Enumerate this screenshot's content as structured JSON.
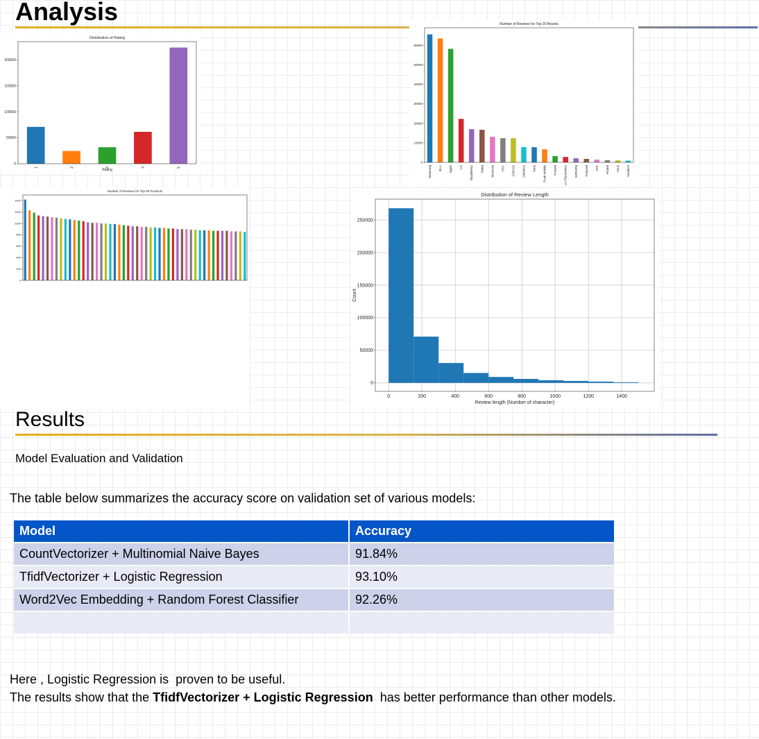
{
  "header": {
    "title": "Analysis"
  },
  "chart_data": [
    {
      "type": "bar",
      "title": "Distribution of Rating",
      "xlabel": "Rating",
      "categories": [
        "1",
        "2",
        "3",
        "4",
        "5"
      ],
      "values": [
        71000,
        24700,
        31800,
        61400,
        223600
      ],
      "colors": [
        "#1f77b4",
        "#ff7f0e",
        "#2ca02c",
        "#d62728",
        "#9467bd"
      ],
      "ylim": [
        0,
        235000
      ],
      "yticks": [
        0,
        50000,
        100000,
        150000,
        200000
      ],
      "grid": false
    },
    {
      "type": "bar",
      "title": "Number of Reviews for Top 20 Brands",
      "categories": [
        "Samsung",
        "BLU",
        "Apple",
        "LG",
        "BlackBerry",
        "Nokia",
        "Motorola",
        "HTC",
        "CNPGD",
        "OtterBox",
        "Sony",
        "Posh Mobile",
        "Huawei",
        "LG Electronics",
        "samsung",
        "Polaroid",
        "ZTE",
        "Alcatel",
        "Asus",
        "verykool"
      ],
      "values": [
        65600,
        63500,
        58200,
        22300,
        17000,
        16700,
        13100,
        12400,
        12400,
        7800,
        7800,
        6700,
        3200,
        2800,
        2100,
        1800,
        1400,
        1100,
        1000,
        900
      ],
      "colors": [
        "#1f77b4",
        "#ff7f0e",
        "#2ca02c",
        "#d62728",
        "#9467bd",
        "#8c564b",
        "#e377c2",
        "#7f7f7f",
        "#bcbd22",
        "#17becf"
      ],
      "ylim": [
        0,
        69000
      ],
      "yticks": [
        0,
        10000,
        20000,
        30000,
        40000,
        50000,
        60000
      ],
      "grid": false
    },
    {
      "type": "bar",
      "title": "Number of Reviews for Top 50 Products",
      "categories": [
        null,
        null,
        null,
        null,
        null,
        null,
        null,
        null,
        null,
        null,
        null,
        null,
        null,
        null,
        null,
        null,
        null,
        null,
        null,
        null,
        null,
        null,
        null,
        null,
        null,
        null,
        null,
        null,
        null,
        null,
        null,
        null,
        null,
        null,
        null,
        null,
        null,
        null,
        null,
        null,
        null,
        null,
        null,
        null,
        null,
        null,
        null,
        null,
        null,
        null
      ],
      "values": [
        1420,
        1230,
        1190,
        1140,
        1130,
        1120,
        1110,
        1100,
        1090,
        1080,
        1070,
        1060,
        1050,
        1040,
        1020,
        1010,
        1010,
        1000,
        1000,
        990,
        990,
        980,
        970,
        960,
        950,
        950,
        940,
        940,
        930,
        930,
        920,
        920,
        910,
        910,
        900,
        900,
        900,
        890,
        890,
        880,
        880,
        880,
        870,
        870,
        870,
        870,
        860,
        860,
        860,
        850
      ],
      "colors": [
        "#1f77b4",
        "#ff7f0e",
        "#2ca02c",
        "#d62728",
        "#9467bd",
        "#8c564b",
        "#e377c2",
        "#7f7f7f",
        "#bcbd22",
        "#17becf"
      ],
      "ylim": [
        0,
        1500
      ],
      "yticks": [
        0,
        200,
        400,
        600,
        800,
        1000,
        1200,
        1400
      ],
      "grid": false
    },
    {
      "type": "histogram",
      "title": "Distribution of Review Length",
      "xlabel": "Review length (Number of character)",
      "ylabel": "Count",
      "bins": [
        0,
        150,
        300,
        450,
        600,
        750,
        900,
        1050,
        1200,
        1350,
        1500
      ],
      "values": [
        268000,
        71000,
        30500,
        15200,
        9100,
        6100,
        4100,
        3000,
        2000,
        1000
      ],
      "color": "#1f77b4",
      "xlim": [
        -80,
        1595
      ],
      "xticks": [
        0,
        200,
        400,
        600,
        800,
        1000,
        1200,
        1400
      ],
      "ylim": [
        -13000,
        282000
      ],
      "yticks": [
        0,
        50000,
        100000,
        150000,
        200000,
        250000
      ],
      "grid": true
    }
  ],
  "results": {
    "title": "Results",
    "subtitle": "Model Evaluation and Validation",
    "intro": "The table below summarizes the accuracy score on validation set of various models:",
    "table": {
      "header": [
        "Model",
        "Accuracy"
      ],
      "rows": [
        [
          "CountVectorizer + Multinomial Naive Bayes",
          "91.84%"
        ],
        [
          "TfidfVectorizer + Logistic Regression",
          "93.10%"
        ],
        [
          "Word2Vec Embedding + Random Forest Classifier",
          "92.26%"
        ]
      ]
    },
    "conclusion": [
      "Here , Logistic Regression is  proven to be useful.",
      "The results show that the ",
      "TfidfVectorizer + Logistic Regression",
      "  has better performance than other models."
    ]
  }
}
